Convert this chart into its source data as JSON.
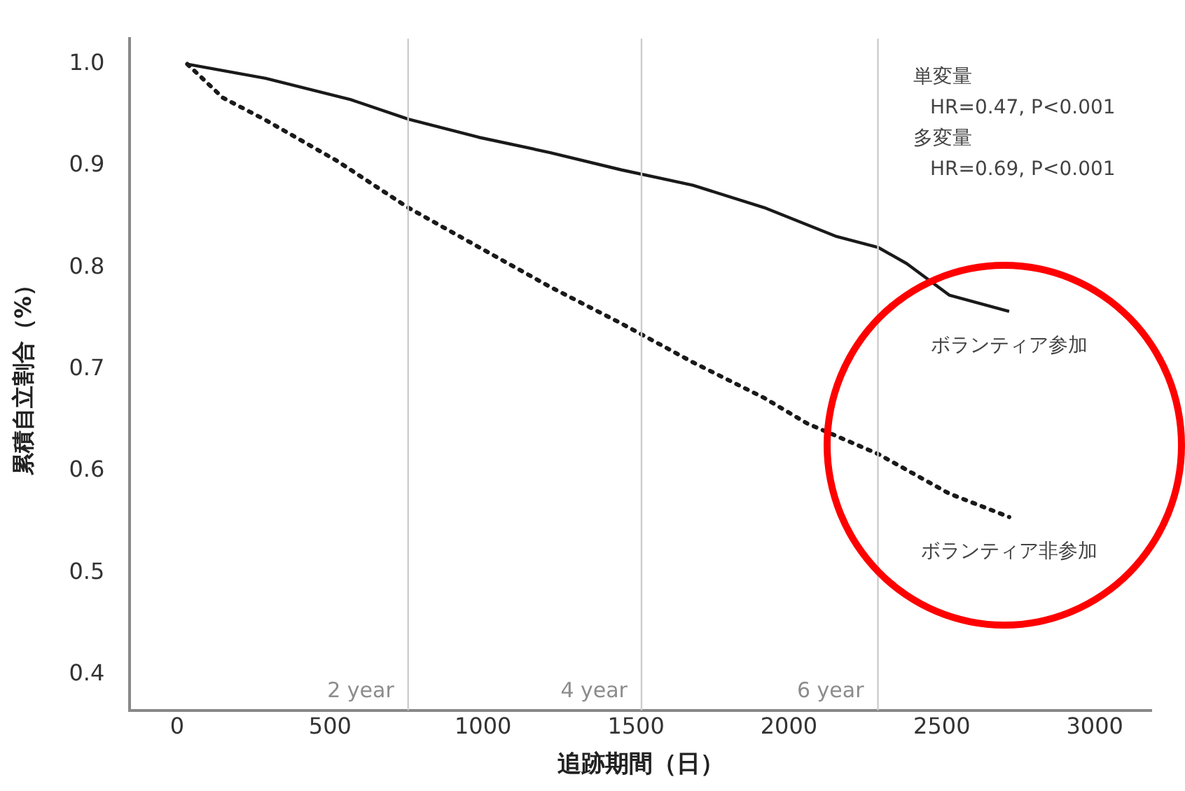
{
  "chart_data": {
    "type": "line",
    "xlabel": "追跡期間（日）",
    "ylabel": "累積自立割合（%）",
    "xlim": [
      -155,
      3185
    ],
    "ylim": [
      0.365,
      1.025
    ],
    "xticks": [
      0,
      500,
      1000,
      1500,
      2000,
      2500,
      3000
    ],
    "yticks": [
      0.4,
      0.5,
      0.6,
      0.7,
      0.8,
      0.9,
      {
        "value": 1,
        "label": "1.0"
      }
    ],
    "grid": false,
    "legend": false,
    "marker": "none",
    "series": [
      {
        "name": "ボランティア参加",
        "color": "#1a1a1a",
        "line_style": "solid",
        "x": [
          33,
          289,
          568,
          755,
          987,
          1220,
          1453,
          1686,
          1919,
          2152,
          2291,
          2385,
          2524,
          2720
        ],
        "values": [
          1.0,
          0.986,
          0.965,
          0.946,
          0.928,
          0.913,
          0.896,
          0.881,
          0.859,
          0.831,
          0.82,
          0.804,
          0.773,
          0.757
        ]
      },
      {
        "name": "ボランティア非参加",
        "color": "#1a1a1a",
        "line_style": "dotted",
        "x": [
          33,
          149,
          289,
          522,
          755,
          987,
          1220,
          1453,
          1686,
          1919,
          2059,
          2291,
          2524,
          2720
        ],
        "values": [
          1.0,
          0.967,
          0.945,
          0.905,
          0.859,
          0.82,
          0.781,
          0.745,
          0.707,
          0.672,
          0.647,
          0.617,
          0.578,
          0.555
        ]
      }
    ],
    "ref_lines": [
      {
        "axis": "x",
        "value": 755,
        "label": "2 year",
        "color": "#cccccc"
      },
      {
        "axis": "x",
        "value": 1518,
        "label": "4 year",
        "color": "#cccccc"
      },
      {
        "axis": "x",
        "value": 2291,
        "label": "6 year",
        "color": "#cccccc"
      }
    ],
    "annotations": [
      "単変量",
      "HR=0.47, P<0.001",
      "多変量",
      "HR=0.69, P<0.001"
    ]
  }
}
